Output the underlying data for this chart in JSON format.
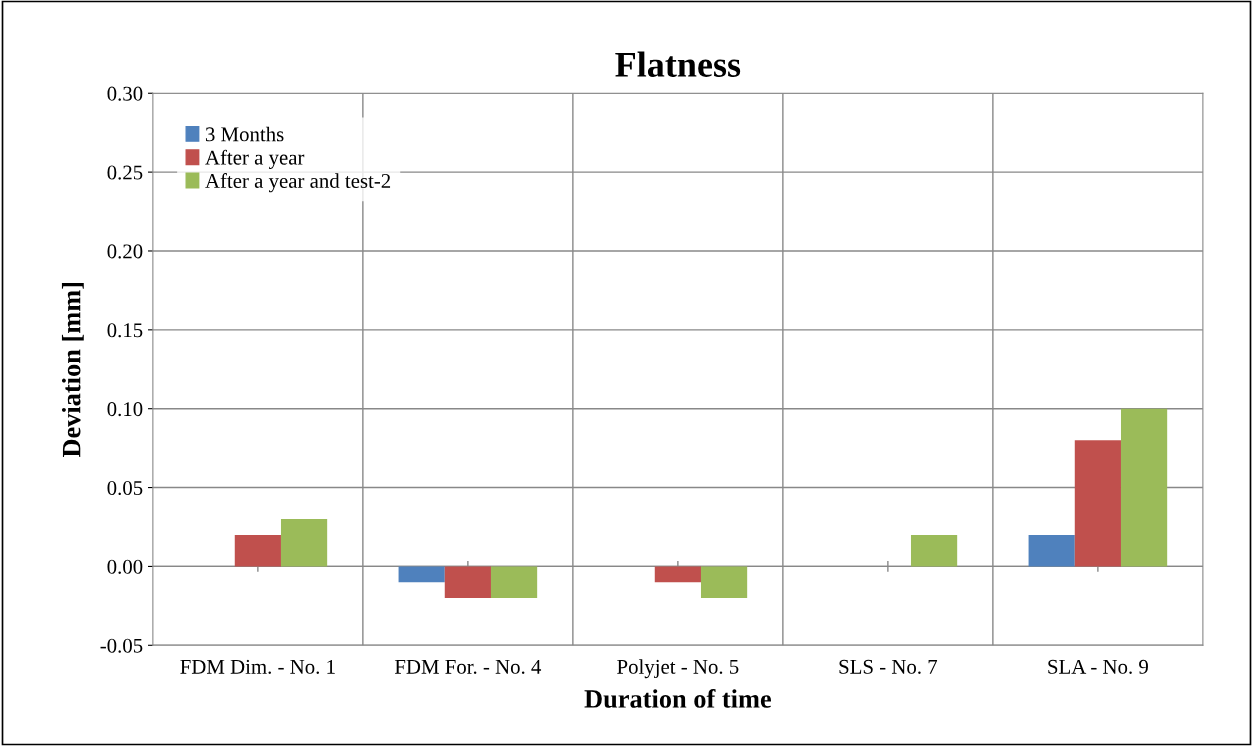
{
  "chart_data": {
    "type": "bar",
    "title": "Flatness",
    "xlabel": "Duration of time",
    "ylabel": "Deviation [mm]",
    "categories": [
      "FDM Dim. - No. 1",
      "FDM For. - No. 4",
      "Polyjet - No. 5",
      "SLS - No. 7",
      "SLA - No. 9"
    ],
    "series": [
      {
        "name": "3 Months",
        "color": "#4f81bd",
        "values": [
          0,
          -0.01,
          0,
          0,
          0.02
        ]
      },
      {
        "name": "After a year",
        "color": "#c0504d",
        "values": [
          0.02,
          -0.02,
          -0.01,
          0,
          0.08
        ]
      },
      {
        "name": "After a year and test-2",
        "color": "#9bbb59",
        "values": [
          0.03,
          -0.02,
          -0.02,
          0.02,
          0.1
        ]
      }
    ],
    "ylim": [
      -0.05,
      0.3
    ],
    "yticks": [
      {
        "value": -0.05,
        "label": "-0.05"
      },
      {
        "value": 0,
        "label": "0.00"
      },
      {
        "value": 0.05,
        "label": "0.05"
      },
      {
        "value": 0.1,
        "label": "0.10"
      },
      {
        "value": 0.15,
        "label": "0.15"
      },
      {
        "value": 0.2,
        "label": "0.20"
      },
      {
        "value": 0.25,
        "label": "0.25"
      },
      {
        "value": 0.3,
        "label": "0.30"
      }
    ],
    "grid": true,
    "legend": "top left"
  }
}
